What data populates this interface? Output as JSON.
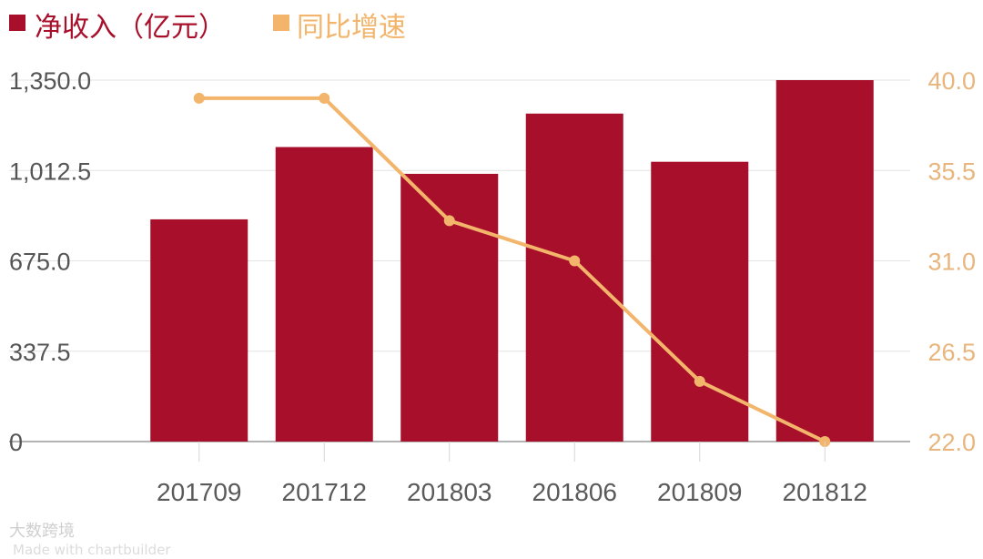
{
  "chart_data": {
    "type": "bar",
    "categories": [
      "201709",
      "201712",
      "201803",
      "201806",
      "201809",
      "201812"
    ],
    "series": [
      {
        "name": "净收入（亿元）",
        "type": "bar",
        "axis": "left",
        "color": "#A80F2A",
        "values": [
          830,
          1100,
          1000,
          1225,
          1045,
          1350
        ]
      },
      {
        "name": "同比增速",
        "type": "line",
        "axis": "right",
        "color": "#F2B56B",
        "values": [
          39.1,
          39.1,
          33.0,
          31.0,
          25.0,
          22.0
        ]
      }
    ],
    "left_axis": {
      "min": 0,
      "max": 1350,
      "ticks": [
        "0",
        "337.5",
        "675.0",
        "1,012.5",
        "1,350.0"
      ]
    },
    "right_axis": {
      "min": 22,
      "max": 40,
      "ticks": [
        "22.0",
        "26.5",
        "31.0",
        "35.5",
        "40.0"
      ]
    },
    "legend": {
      "position": "top-left",
      "items": [
        "净收入（亿元）",
        "同比增速"
      ]
    },
    "grid": true
  },
  "watermark": {
    "brand": "大数跨境",
    "sub": "Made with chartbuilder"
  }
}
